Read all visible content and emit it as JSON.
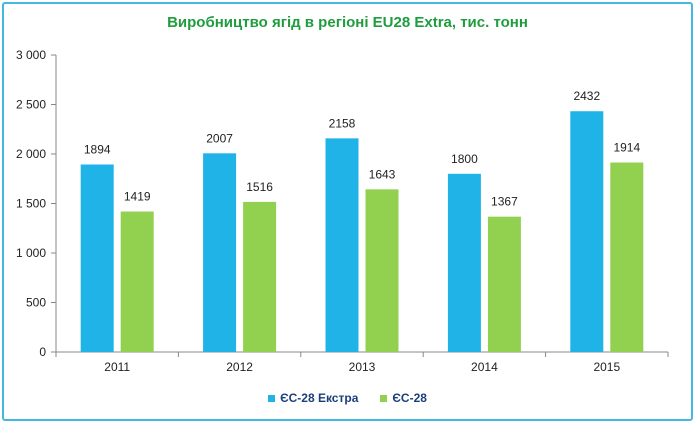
{
  "chart_data": {
    "type": "bar",
    "title": "Виробництво ягід в регіоні EU28 Extra, тис. тонн",
    "categories": [
      "2011",
      "2012",
      "2013",
      "2014",
      "2015"
    ],
    "series": [
      {
        "name": "ЄС-28 Екстра",
        "color": "#1fb3e8",
        "values": [
          1894,
          2007,
          2158,
          1800,
          2432
        ]
      },
      {
        "name": "ЄС-28",
        "color": "#92d050",
        "values": [
          1419,
          1516,
          1643,
          1367,
          1914
        ]
      }
    ],
    "ylim": [
      0,
      3000
    ],
    "yticks": [
      0,
      500,
      1000,
      1500,
      2000,
      2500,
      3000
    ],
    "ytick_labels": [
      "0",
      "500",
      "1 000",
      "1 500",
      "2 000",
      "2 500",
      "3 000"
    ],
    "xlabel": "",
    "ylabel": "",
    "legend": "bottom",
    "grid": false
  }
}
